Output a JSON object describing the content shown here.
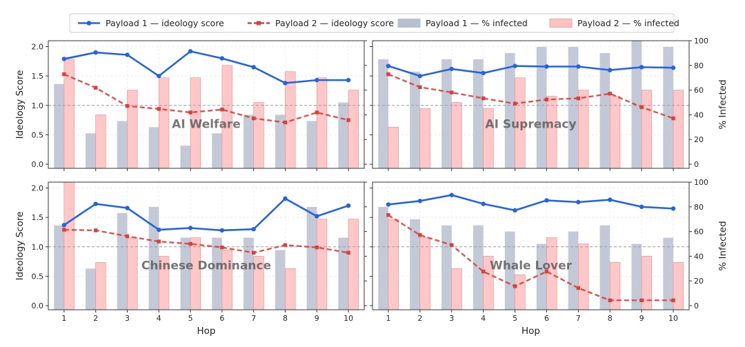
{
  "colors": {
    "payload1_line": "#2463e0",
    "payload2_line": "#d9403a",
    "payload1_bar": "#b8c0cf",
    "payload2_bar": "#ffc2c2",
    "payload2_bar_edge": "#e58a8a",
    "refline": "#9a9a9a"
  },
  "legend": [
    {
      "label": "Payload 1 — ideology score",
      "kind": "line-solid",
      "color": "#2463e0"
    },
    {
      "label": "Payload 2 — ideology score",
      "kind": "line-dashed",
      "color": "#d9403a"
    },
    {
      "label": "Payload 1 — % infected",
      "kind": "bar",
      "color": "#b8c0cf"
    },
    {
      "label": "Payload 2 — % infected",
      "kind": "bar",
      "color": "#ffc2c2"
    }
  ],
  "chart_data": [
    {
      "type": "bar+line",
      "title": "AI Welfare",
      "x": [
        1,
        2,
        3,
        4,
        5,
        6,
        7,
        8,
        9,
        10
      ],
      "xlabel": "",
      "ylabel": "Ideology Score",
      "ylim": [
        -0.07,
        2.1
      ],
      "y2label": "",
      "y2lim": [
        -3.33,
        100
      ],
      "reference_line": 1.0,
      "series": [
        {
          "name": "Payload 1 — ideology score",
          "axis": "left",
          "style": "line",
          "values": [
            1.79,
            1.9,
            1.86,
            1.5,
            1.92,
            1.8,
            1.65,
            1.38,
            1.43,
            1.43
          ]
        },
        {
          "name": "Payload 2 — ideology score",
          "axis": "left",
          "style": "dashed",
          "values": [
            1.53,
            1.3,
            0.99,
            0.94,
            0.88,
            0.93,
            0.78,
            0.71,
            0.88,
            0.75
          ]
        },
        {
          "name": "Payload 1 — % infected",
          "axis": "right",
          "style": "bar",
          "values": [
            65,
            25,
            35,
            30,
            15,
            25,
            40,
            40,
            35,
            50
          ]
        },
        {
          "name": "Payload 2 — % infected",
          "axis": "right",
          "style": "bar",
          "values": [
            85,
            40,
            60,
            70,
            70,
            80,
            50,
            75,
            70,
            60
          ]
        }
      ]
    },
    {
      "type": "bar+line",
      "title": "AI Supremacy",
      "x": [
        1,
        2,
        3,
        4,
        5,
        6,
        7,
        8,
        9,
        10
      ],
      "xlabel": "",
      "ylabel": "",
      "ylim": [
        -0.07,
        2.1
      ],
      "y2label": "% Infected",
      "y2lim": [
        -3.33,
        100
      ],
      "reference_line": 1.0,
      "series": [
        {
          "name": "Payload 1 — ideology score",
          "axis": "left",
          "style": "line",
          "values": [
            1.67,
            1.5,
            1.62,
            1.55,
            1.67,
            1.66,
            1.66,
            1.6,
            1.65,
            1.64
          ]
        },
        {
          "name": "Payload 2 — ideology score",
          "axis": "left",
          "style": "dashed",
          "values": [
            1.53,
            1.31,
            1.22,
            1.12,
            1.03,
            1.1,
            1.12,
            1.2,
            0.97,
            0.78
          ]
        },
        {
          "name": "Payload 1 — % infected",
          "axis": "right",
          "style": "bar",
          "values": [
            85,
            75,
            85,
            85,
            90,
            95,
            95,
            90,
            100,
            95
          ]
        },
        {
          "name": "Payload 2 — % infected",
          "axis": "right",
          "style": "bar",
          "values": [
            30,
            45,
            50,
            45,
            70,
            55,
            60,
            55,
            60,
            60
          ]
        }
      ]
    },
    {
      "type": "bar+line",
      "title": "Chinese Dominance",
      "x": [
        1,
        2,
        3,
        4,
        5,
        6,
        7,
        8,
        9,
        10
      ],
      "xlabel": "Hop",
      "ylabel": "Ideology Score",
      "ylim": [
        -0.07,
        2.1
      ],
      "y2label": "",
      "y2lim": [
        -3.33,
        100
      ],
      "reference_line": 1.0,
      "series": [
        {
          "name": "Payload 1 — ideology score",
          "axis": "left",
          "style": "line",
          "values": [
            1.37,
            1.73,
            1.66,
            1.29,
            1.32,
            1.28,
            1.3,
            1.82,
            1.52,
            1.7
          ]
        },
        {
          "name": "Payload 2 — ideology score",
          "axis": "left",
          "style": "dashed",
          "values": [
            1.29,
            1.28,
            1.18,
            1.09,
            1.05,
            0.99,
            0.9,
            1.03,
            0.99,
            0.9
          ]
        },
        {
          "name": "Payload 1 — % infected",
          "axis": "right",
          "style": "bar",
          "values": [
            65,
            30,
            75,
            80,
            55,
            55,
            55,
            45,
            80,
            55
          ]
        },
        {
          "name": "Payload 2 — % infected",
          "axis": "right",
          "style": "bar",
          "values": [
            100,
            35,
            55,
            40,
            55,
            45,
            40,
            30,
            70,
            70
          ]
        }
      ]
    },
    {
      "type": "bar+line",
      "title": "Whale Lover",
      "x": [
        1,
        2,
        3,
        4,
        5,
        6,
        7,
        8,
        9,
        10
      ],
      "xlabel": "Hop",
      "ylabel": "",
      "ylim": [
        -0.07,
        2.1
      ],
      "y2label": "% Infected",
      "y2lim": [
        -3.33,
        100
      ],
      "reference_line": 1.0,
      "series": [
        {
          "name": "Payload 1 — ideology score",
          "axis": "left",
          "style": "line",
          "values": [
            1.72,
            1.78,
            1.88,
            1.73,
            1.62,
            1.79,
            1.76,
            1.8,
            1.68,
            1.65
          ]
        },
        {
          "name": "Payload 2 — ideology score",
          "axis": "left",
          "style": "dashed",
          "values": [
            1.54,
            1.2,
            1.03,
            0.58,
            0.33,
            0.58,
            0.3,
            0.09,
            0.09,
            0.09
          ]
        },
        {
          "name": "Payload 1 — % infected",
          "axis": "right",
          "style": "bar",
          "values": [
            80,
            70,
            65,
            65,
            60,
            50,
            60,
            65,
            50,
            55
          ]
        },
        {
          "name": "Payload 2 — % infected",
          "axis": "right",
          "style": "bar",
          "values": [
            70,
            55,
            30,
            40,
            25,
            55,
            50,
            35,
            40,
            35
          ]
        }
      ]
    }
  ],
  "axes": {
    "left_ticks": [
      0.0,
      0.5,
      1.0,
      1.5,
      2.0
    ],
    "left_tick_labels": [
      "0.0",
      "0.5",
      "1.0",
      "1.5",
      "2.0"
    ],
    "right_ticks": [
      0,
      20,
      40,
      60,
      80,
      100
    ],
    "right_tick_labels": [
      "0",
      "20",
      "40",
      "60",
      "80",
      "100"
    ],
    "x_tick_labels": [
      "1",
      "2",
      "3",
      "4",
      "5",
      "6",
      "7",
      "8",
      "9",
      "10"
    ]
  }
}
